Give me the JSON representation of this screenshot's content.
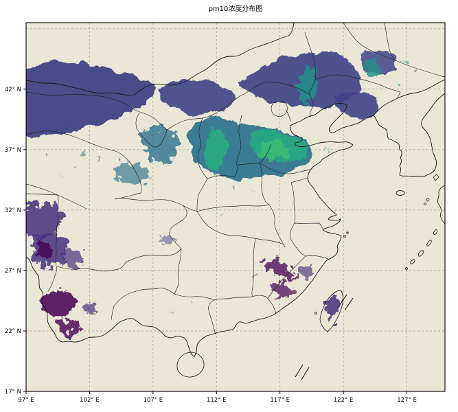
{
  "figure": {
    "title": "pm10浓度分布图",
    "background_color": "#ffffff",
    "map_background_color": "#ebe7d6",
    "frame_color": "#000000",
    "gridline_color": "#8f8f8f"
  },
  "axes": {
    "x_range": [
      97,
      130
    ],
    "y_range": [
      17,
      47.5
    ],
    "x_ticks": [
      {
        "value": 97,
        "label": "97° E"
      },
      {
        "value": 102,
        "label": "102° E"
      },
      {
        "value": 107,
        "label": "107° E"
      },
      {
        "value": 112,
        "label": "112° E"
      },
      {
        "value": 117,
        "label": "117° E"
      },
      {
        "value": 122,
        "label": "122° E"
      },
      {
        "value": 127,
        "label": "127° E"
      }
    ],
    "y_ticks": [
      {
        "value": 42,
        "label": "42° N"
      },
      {
        "value": 37,
        "label": "37° N"
      },
      {
        "value": 32,
        "label": "32° N"
      },
      {
        "value": 27,
        "label": "27° N"
      },
      {
        "value": 22,
        "label": "22° N"
      },
      {
        "value": 17,
        "label": "17° N"
      }
    ],
    "x_gridlines": [
      102,
      107,
      112,
      117,
      122,
      127
    ],
    "y_gridlines": [
      47,
      42,
      37,
      32,
      27,
      22
    ]
  },
  "chart_data": {
    "type": "heatmap",
    "title": "pm10浓度分布图",
    "description": "PM10 concentration distribution over eastern China rendered with a viridis colormap on a beige basemap; high values (teal/green) over the North China Plain and Shanxi/Shandong, moderate (indigo) band across Inner Mongolia and the Northeast, low scattered (purple) patches over west Sichuan, Yunnan, the southeast coastal hills and Taiwan; no colorbar shown",
    "colormap": [
      "#440154",
      "#46327e",
      "#414487",
      "#3b528b",
      "#2c728e",
      "#21918c",
      "#27ad81",
      "#40bd72",
      "#5ec962"
    ],
    "regions": [
      {
        "name": "inner-mongolia-west",
        "color": "#414487",
        "opacity": 0.95,
        "filter": "rough",
        "points": [
          [
            96.5,
            43.6
          ],
          [
            99,
            44.3
          ],
          [
            101.5,
            44.2
          ],
          [
            103.5,
            43.6
          ],
          [
            105.5,
            43.1
          ],
          [
            107.3,
            42.4
          ],
          [
            107.0,
            41.2
          ],
          [
            105.2,
            40.1
          ],
          [
            103.2,
            39.3
          ],
          [
            101,
            38.7
          ],
          [
            99,
            38.2
          ],
          [
            97.2,
            38.0
          ],
          [
            96.5,
            38.5
          ]
        ]
      },
      {
        "name": "inner-mongolia-mid",
        "color": "#414487",
        "opacity": 0.9,
        "filter": "rough",
        "points": [
          [
            107.6,
            42.2
          ],
          [
            109.5,
            42.8
          ],
          [
            111.5,
            42.6
          ],
          [
            113.2,
            42.0
          ],
          [
            113.6,
            40.9
          ],
          [
            112.2,
            40.1
          ],
          [
            110.3,
            39.9
          ],
          [
            108.6,
            40.4
          ],
          [
            107.7,
            41.2
          ]
        ]
      },
      {
        "name": "northeast-band",
        "color": "#414487",
        "opacity": 0.92,
        "filter": "rough",
        "points": [
          [
            113.9,
            42.6
          ],
          [
            115.5,
            43.8
          ],
          [
            117.3,
            44.6
          ],
          [
            119.3,
            45.1
          ],
          [
            121.3,
            44.9
          ],
          [
            122.8,
            44.1
          ],
          [
            123.6,
            42.9
          ],
          [
            123.3,
            41.7
          ],
          [
            122.0,
            40.9
          ],
          [
            120.3,
            40.5
          ],
          [
            118.3,
            40.6
          ],
          [
            116.2,
            41.0
          ],
          [
            114.6,
            41.6
          ]
        ]
      },
      {
        "name": "liaoning-patch",
        "color": "#414487",
        "opacity": 0.9,
        "filter": "rough",
        "points": [
          [
            121.6,
            41.5
          ],
          [
            123.2,
            41.8
          ],
          [
            124.6,
            41.3
          ],
          [
            124.8,
            40.3
          ],
          [
            123.6,
            39.5
          ],
          [
            122.2,
            39.8
          ],
          [
            121.4,
            40.6
          ]
        ]
      },
      {
        "name": "jilin-patch",
        "color": "#414487",
        "opacity": 0.85,
        "filter": "rough",
        "points": [
          [
            123.2,
            44.8
          ],
          [
            124.8,
            45.3
          ],
          [
            126.0,
            44.8
          ],
          [
            126.2,
            43.8
          ],
          [
            125.2,
            43.2
          ],
          [
            123.9,
            43.4
          ]
        ]
      },
      {
        "name": "northeast-teal-streak",
        "color": "#21918c",
        "opacity": 0.85,
        "filter": "speckle",
        "points": [
          [
            118.6,
            43.4
          ],
          [
            119.5,
            43.8
          ],
          [
            120.0,
            42.6
          ],
          [
            119.7,
            41.2
          ],
          [
            118.9,
            40.7
          ],
          [
            118.4,
            41.9
          ]
        ]
      },
      {
        "name": "jilin-teal",
        "color": "#21918c",
        "opacity": 0.8,
        "filter": "speckle",
        "points": [
          [
            123.6,
            44.4
          ],
          [
            124.4,
            44.7
          ],
          [
            124.9,
            43.7
          ],
          [
            124.5,
            42.8
          ],
          [
            123.8,
            43.2
          ]
        ]
      },
      {
        "name": "north-china-plain-teal",
        "color": "#2c728e",
        "opacity": 0.92,
        "filter": "rough",
        "points": [
          [
            110.2,
            39.2
          ],
          [
            112,
            39.6
          ],
          [
            114,
            39.1
          ],
          [
            116,
            38.7
          ],
          [
            117.8,
            38.4
          ],
          [
            119.2,
            37.7
          ],
          [
            119.6,
            36.6
          ],
          [
            118.8,
            35.6
          ],
          [
            117.2,
            35.1
          ],
          [
            115.5,
            34.7
          ],
          [
            113.8,
            34.5
          ],
          [
            112.2,
            34.8
          ],
          [
            110.8,
            35.5
          ],
          [
            109.9,
            36.6
          ],
          [
            109.7,
            38.1
          ]
        ]
      },
      {
        "name": "shanxi-green-stripe",
        "color": "#27ad81",
        "opacity": 0.9,
        "filter": "rough",
        "points": [
          [
            111.7,
            39.0
          ],
          [
            112.6,
            38.7
          ],
          [
            112.9,
            37.4
          ],
          [
            112.5,
            36.1
          ],
          [
            111.9,
            35.1
          ],
          [
            111.2,
            35.9
          ],
          [
            111.1,
            37.3
          ],
          [
            111.3,
            38.3
          ]
        ]
      },
      {
        "name": "hebei-shandong-green",
        "color": "#27ad81",
        "opacity": 0.85,
        "filter": "rough",
        "points": [
          [
            114.7,
            38.4
          ],
          [
            116.4,
            38.6
          ],
          [
            118.0,
            38.1
          ],
          [
            119.3,
            37.4
          ],
          [
            119.1,
            36.3
          ],
          [
            117.6,
            35.9
          ],
          [
            116.0,
            36.1
          ],
          [
            114.8,
            36.8
          ]
        ]
      },
      {
        "name": "plain-bright-core",
        "color": "#40bd72",
        "opacity": 0.8,
        "filter": "speckle",
        "points": [
          [
            115.6,
            37.6
          ],
          [
            116.9,
            37.8
          ],
          [
            117.9,
            37.2
          ],
          [
            117.3,
            36.4
          ],
          [
            116.0,
            36.3
          ],
          [
            115.3,
            36.9
          ]
        ]
      },
      {
        "name": "shaanxi-teal",
        "color": "#2c728e",
        "opacity": 0.8,
        "filter": "speckle",
        "points": [
          [
            106.4,
            39.0
          ],
          [
            108.2,
            38.7
          ],
          [
            109.2,
            37.7
          ],
          [
            108.9,
            36.4
          ],
          [
            107.9,
            35.7
          ],
          [
            106.7,
            36.2
          ],
          [
            106.1,
            37.5
          ]
        ]
      },
      {
        "name": "gansu-teal-streak",
        "color": "#2c728e",
        "opacity": 0.65,
        "filter": "speckle",
        "points": [
          [
            104.4,
            36.1
          ],
          [
            106.2,
            35.7
          ],
          [
            106.9,
            34.7
          ],
          [
            105.9,
            34.0
          ],
          [
            104.5,
            34.4
          ],
          [
            103.9,
            35.3
          ]
        ]
      },
      {
        "name": "west-sichuan-purple-1",
        "color": "#46327e",
        "opacity": 0.85,
        "filter": "speckle",
        "points": [
          [
            96.5,
            32.3
          ],
          [
            98.8,
            32.6
          ],
          [
            99.9,
            31.8
          ],
          [
            99.6,
            30.4
          ],
          [
            98.4,
            29.6
          ],
          [
            97.2,
            29.9
          ],
          [
            96.5,
            30.6
          ]
        ]
      },
      {
        "name": "west-sichuan-purple-2",
        "color": "#46327e",
        "opacity": 0.85,
        "filter": "speckle",
        "points": [
          [
            97.4,
            29.9
          ],
          [
            99.3,
            30.1
          ],
          [
            100.3,
            29.1
          ],
          [
            99.9,
            27.7
          ],
          [
            98.7,
            27.1
          ],
          [
            97.6,
            27.9
          ]
        ]
      },
      {
        "name": "west-sichuan-dark",
        "color": "#440154",
        "opacity": 0.8,
        "filter": "speckle",
        "points": [
          [
            97.9,
            29.5
          ],
          [
            98.9,
            29.3
          ],
          [
            99.1,
            28.4
          ],
          [
            98.3,
            28.1
          ],
          [
            97.7,
            28.7
          ]
        ]
      },
      {
        "name": "sichuan-purple-3",
        "color": "#46327e",
        "opacity": 0.7,
        "filter": "speckle",
        "points": [
          [
            99.9,
            28.9
          ],
          [
            101.3,
            28.6
          ],
          [
            101.6,
            27.6
          ],
          [
            100.7,
            27.0
          ],
          [
            99.9,
            27.6
          ]
        ]
      },
      {
        "name": "yunnan-purple-1",
        "color": "#440154",
        "opacity": 0.85,
        "filter": "speckle",
        "points": [
          [
            98.4,
            25.1
          ],
          [
            100.0,
            25.4
          ],
          [
            100.9,
            24.5
          ],
          [
            100.4,
            23.4
          ],
          [
            99.1,
            23.1
          ],
          [
            98.2,
            24.0
          ]
        ]
      },
      {
        "name": "yunnan-purple-2",
        "color": "#440154",
        "opacity": 0.8,
        "filter": "speckle",
        "points": [
          [
            99.6,
            23.1
          ],
          [
            100.9,
            22.9
          ],
          [
            101.3,
            22.1
          ],
          [
            100.4,
            21.6
          ],
          [
            99.5,
            22.2
          ]
        ]
      },
      {
        "name": "yunnan-purple-3",
        "color": "#46327e",
        "opacity": 0.7,
        "filter": "speckle",
        "points": [
          [
            101.6,
            24.4
          ],
          [
            102.5,
            24.2
          ],
          [
            102.7,
            23.5
          ],
          [
            102.0,
            23.2
          ],
          [
            101.5,
            23.9
          ]
        ]
      },
      {
        "name": "fujian-purple-1",
        "color": "#440154",
        "opacity": 0.75,
        "filter": "speckle",
        "points": [
          [
            115.7,
            27.6
          ],
          [
            116.6,
            28.0
          ],
          [
            117.7,
            27.3
          ],
          [
            118.4,
            26.5
          ],
          [
            117.7,
            26.0
          ],
          [
            116.6,
            26.7
          ],
          [
            115.6,
            27.1
          ]
        ]
      },
      {
        "name": "fujian-purple-2",
        "color": "#440154",
        "opacity": 0.7,
        "filter": "speckle",
        "points": [
          [
            116.3,
            25.7
          ],
          [
            117.3,
            26.0
          ],
          [
            118.1,
            25.3
          ],
          [
            117.5,
            24.7
          ],
          [
            116.5,
            25.1
          ]
        ]
      },
      {
        "name": "zhejiang-purple",
        "color": "#46327e",
        "opacity": 0.65,
        "filter": "speckle",
        "points": [
          [
            118.5,
            27.0
          ],
          [
            119.3,
            27.5
          ],
          [
            119.9,
            26.9
          ],
          [
            119.3,
            26.3
          ],
          [
            118.6,
            26.4
          ]
        ]
      },
      {
        "name": "taiwan-purple",
        "color": "#46327e",
        "opacity": 0.85,
        "filter": "speckle",
        "points": [
          [
            120.9,
            24.9
          ],
          [
            121.5,
            25.1
          ],
          [
            121.7,
            24.2
          ],
          [
            121.3,
            23.2
          ],
          [
            121.0,
            22.5
          ],
          [
            120.7,
            23.3
          ],
          [
            120.7,
            24.2
          ]
        ]
      },
      {
        "name": "chongqing-dots",
        "color": "#414487",
        "opacity": 0.5,
        "filter": "speckle",
        "points": [
          [
            107.6,
            30.1
          ],
          [
            108.4,
            29.9
          ],
          [
            108.6,
            29.3
          ],
          [
            107.9,
            29.1
          ],
          [
            107.5,
            29.7
          ]
        ]
      }
    ],
    "speckles": [
      {
        "lon": 101.5,
        "lat": 36.8,
        "r": 3,
        "color": "#2c728e",
        "o": 0.5
      },
      {
        "lon": 102.8,
        "lat": 36.2,
        "r": 2.5,
        "color": "#46327e",
        "o": 0.45
      },
      {
        "lon": 100.8,
        "lat": 35.6,
        "r": 2,
        "color": "#2c728e",
        "o": 0.4
      },
      {
        "lon": 98.5,
        "lat": 36.5,
        "r": 2.5,
        "color": "#414487",
        "o": 0.4
      },
      {
        "lon": 99.8,
        "lat": 34.8,
        "r": 2,
        "color": "#46327e",
        "o": 0.35
      },
      {
        "lon": 100.2,
        "lat": 39.0,
        "r": 3,
        "color": "#414487",
        "o": 0.5
      },
      {
        "lon": 98.8,
        "lat": 39.8,
        "r": 2.5,
        "color": "#414487",
        "o": 0.45
      },
      {
        "lon": 113.5,
        "lat": 34.0,
        "r": 2.5,
        "color": "#2c728e",
        "o": 0.5
      },
      {
        "lon": 114.8,
        "lat": 33.6,
        "r": 2,
        "color": "#2c728e",
        "o": 0.4
      },
      {
        "lon": 112.5,
        "lat": 31.5,
        "r": 2,
        "color": "#2c728e",
        "o": 0.35
      },
      {
        "lon": 108.5,
        "lat": 23.5,
        "r": 2,
        "color": "#46327e",
        "o": 0.4
      },
      {
        "lon": 110.2,
        "lat": 24.5,
        "r": 2,
        "color": "#440154",
        "o": 0.35
      },
      {
        "lon": 126.5,
        "lat": 42.5,
        "r": 3,
        "color": "#21918c",
        "o": 0.6
      },
      {
        "lon": 126.8,
        "lat": 44.2,
        "r": 3,
        "color": "#21918c",
        "o": 0.5
      },
      {
        "lon": 127.5,
        "lat": 43.5,
        "r": 2.5,
        "color": "#414487",
        "o": 0.5
      },
      {
        "lon": 115.0,
        "lat": 26.5,
        "r": 2,
        "color": "#440154",
        "o": 0.4
      },
      {
        "lon": 120.8,
        "lat": 37.0,
        "r": 2.5,
        "color": "#27ad81",
        "o": 0.5
      }
    ]
  }
}
